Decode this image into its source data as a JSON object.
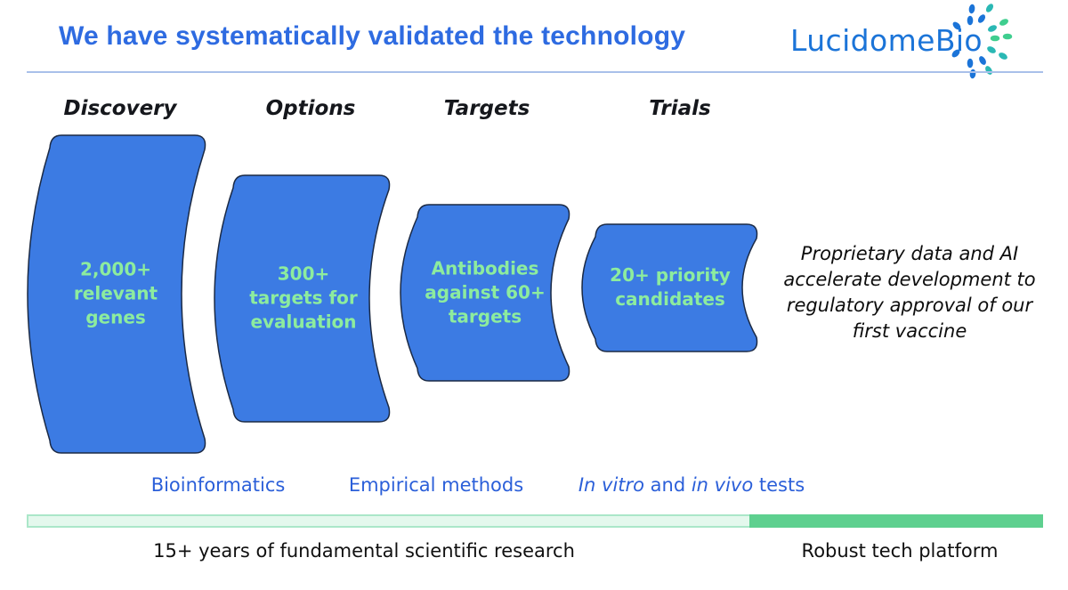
{
  "theme": {
    "title_blue": "#2E6BE1",
    "logo_blue": "#1B74D8",
    "logo_teal": "#2AB8B4",
    "logo_green": "#3FCE8F",
    "rule_blue": "#A9C0EA",
    "funnel_blue": "#3C7BE3",
    "funnel_stroke": "#1B2A45",
    "funnel_text_green": "#8DEC9E",
    "method_blue": "#2B5FD9",
    "bar_light": "#E4F8ED",
    "bar_light_border": "#ABE7C9",
    "bar_dark": "#5ED08F"
  },
  "header": {
    "title": "We have systematically validated the technology",
    "logo_text": "LucidomeBio"
  },
  "funnel": {
    "stages": [
      {
        "label": "Discovery",
        "value": "2,000+\nrelevant\ngenes"
      },
      {
        "label": "Options",
        "value": "300+\ntargets for\nevaluation"
      },
      {
        "label": "Targets",
        "value": "Antibodies\nagainst 60+\ntargets"
      },
      {
        "label": "Trials",
        "value": "20+ priority\ncandidates"
      }
    ],
    "note": "Proprietary data and AI\naccelerate development to\nregulatory approval of our\nfirst vaccine"
  },
  "methods": {
    "bioinformatics": "Bioinformatics",
    "empirical": "Empirical methods",
    "invitro_parts": {
      "a": "In vitro",
      "b": " and ",
      "c": "in vivo",
      "d": " tests"
    }
  },
  "timeline": {
    "left_label": "15+ years of fundamental scientific research",
    "right_label": "Robust tech platform"
  }
}
